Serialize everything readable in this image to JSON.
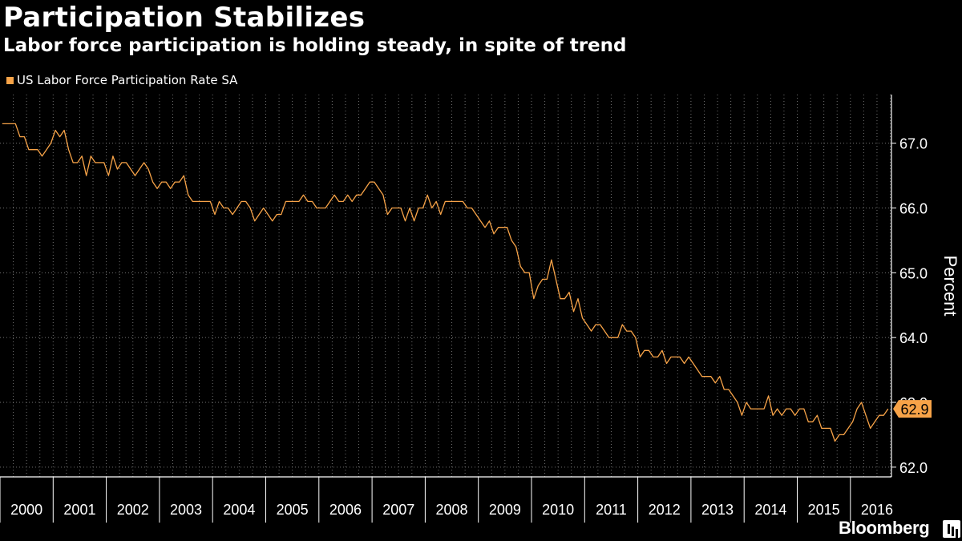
{
  "title": "Participation Stabilizes",
  "subtitle": "Labor force participation is holding steady, in spite of trend",
  "legend": "US Labor Force Participation Rate SA",
  "brand": "Bloomberg",
  "colors": {
    "series": "#f7a348",
    "background": "#000000",
    "text": "#ffffff",
    "grid": "#888888"
  },
  "chart_data": {
    "type": "line",
    "title": "Participation Stabilizes",
    "subtitle": "Labor force participation is holding steady, in spite of trend",
    "ylabel": "Percent",
    "xlabel": "",
    "x_tick_labels": [
      "2000",
      "2001",
      "2002",
      "2003",
      "2004",
      "2005",
      "2006",
      "2007",
      "2008",
      "2009",
      "2010",
      "2011",
      "2012",
      "2013",
      "2014",
      "2015",
      "2016"
    ],
    "y_ticks": [
      62.0,
      63.0,
      64.0,
      65.0,
      66.0,
      67.0
    ],
    "y_tick_labels": [
      "62.0",
      "63.0",
      "64.0",
      "65.0",
      "66.0",
      "67.0"
    ],
    "ylim": [
      61.85,
      67.75
    ],
    "x_range": [
      "2000-01",
      "2016-09"
    ],
    "grid": true,
    "legend_position": "top-left",
    "last_value_label": "62.9",
    "series": [
      {
        "name": "US Labor Force Participation Rate SA",
        "color": "#f7a348",
        "start": "2000-01",
        "frequency": "monthly",
        "values": [
          67.3,
          67.3,
          67.3,
          67.3,
          67.1,
          67.1,
          66.9,
          66.9,
          66.9,
          66.8,
          66.9,
          67.0,
          67.2,
          67.1,
          67.2,
          66.9,
          66.7,
          66.7,
          66.8,
          66.5,
          66.8,
          66.7,
          66.7,
          66.7,
          66.5,
          66.8,
          66.6,
          66.7,
          66.7,
          66.6,
          66.5,
          66.6,
          66.7,
          66.6,
          66.4,
          66.3,
          66.4,
          66.4,
          66.3,
          66.4,
          66.4,
          66.5,
          66.2,
          66.1,
          66.1,
          66.1,
          66.1,
          66.1,
          65.9,
          66.1,
          66.0,
          66.0,
          65.9,
          66.0,
          66.1,
          66.1,
          66.0,
          65.8,
          65.9,
          66.0,
          65.9,
          65.8,
          65.9,
          65.9,
          66.1,
          66.1,
          66.1,
          66.1,
          66.2,
          66.1,
          66.1,
          66.0,
          66.0,
          66.0,
          66.1,
          66.2,
          66.1,
          66.1,
          66.2,
          66.1,
          66.2,
          66.2,
          66.3,
          66.4,
          66.4,
          66.3,
          66.2,
          65.9,
          66.0,
          66.0,
          66.0,
          65.8,
          66.0,
          65.8,
          66.0,
          66.0,
          66.2,
          66.0,
          66.1,
          65.9,
          66.1,
          66.1,
          66.1,
          66.1,
          66.1,
          66.0,
          66.0,
          65.9,
          65.8,
          65.7,
          65.8,
          65.6,
          65.7,
          65.7,
          65.7,
          65.5,
          65.4,
          65.1,
          65.0,
          65.0,
          64.6,
          64.8,
          64.9,
          64.9,
          65.2,
          64.9,
          64.6,
          64.6,
          64.7,
          64.4,
          64.6,
          64.3,
          64.2,
          64.1,
          64.2,
          64.2,
          64.1,
          64.0,
          64.0,
          64.0,
          64.2,
          64.1,
          64.1,
          64.0,
          63.7,
          63.8,
          63.8,
          63.7,
          63.7,
          63.8,
          63.6,
          63.7,
          63.7,
          63.7,
          63.6,
          63.7,
          63.6,
          63.5,
          63.4,
          63.4,
          63.4,
          63.3,
          63.4,
          63.2,
          63.2,
          63.1,
          63.0,
          62.8,
          63.0,
          62.9,
          62.9,
          62.9,
          62.9,
          63.1,
          62.8,
          62.9,
          62.8,
          62.9,
          62.9,
          62.8,
          62.9,
          62.9,
          62.7,
          62.7,
          62.8,
          62.6,
          62.6,
          62.6,
          62.4,
          62.5,
          62.5,
          62.6,
          62.7,
          62.9,
          63.0,
          62.8,
          62.6,
          62.7,
          62.8,
          62.8,
          62.9
        ]
      }
    ]
  }
}
